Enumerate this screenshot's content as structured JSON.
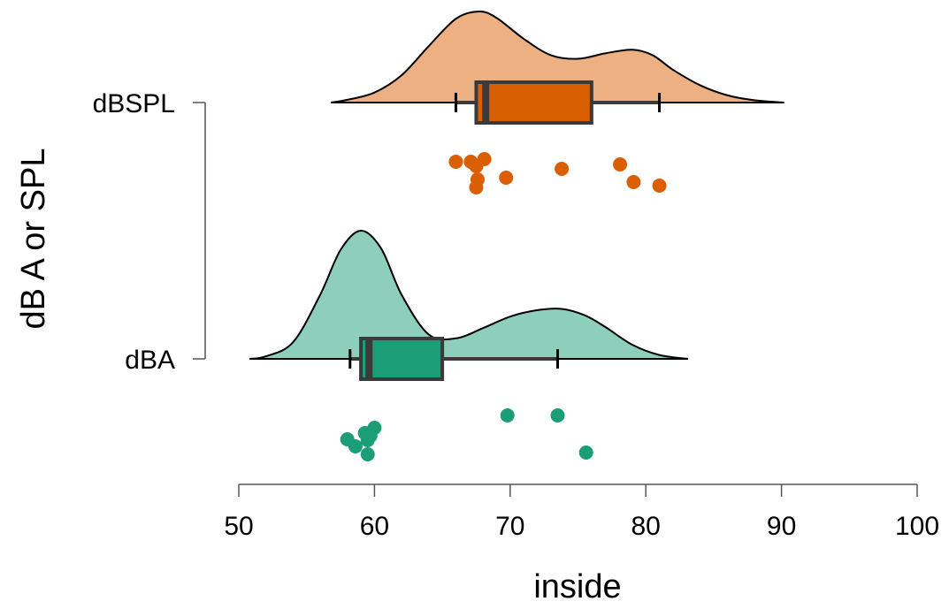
{
  "chart_data": {
    "type": "raincloud",
    "xlabel": "inside",
    "ylabel": "dB A or SPL",
    "xlim": [
      50,
      100
    ],
    "xticks": [
      50,
      60,
      70,
      80,
      90,
      100
    ],
    "xtick_labels": [
      "50",
      "60",
      "70",
      "80",
      "90",
      "100"
    ],
    "grid": false,
    "legend": "none",
    "groups": [
      {
        "name": "dBSPL",
        "fill_color": "#D95F02",
        "density_color": "#EDB083",
        "box": {
          "whisker_low": 66,
          "q1": 67.5,
          "median": 68.2,
          "q3": 76,
          "whisker_high": 81
        },
        "density": {
          "x": [
            56.8,
            58,
            60,
            62,
            64,
            66,
            67.7,
            69,
            71,
            73,
            75,
            77,
            79,
            80.5,
            82,
            84,
            86,
            88,
            90.2
          ],
          "d": [
            0.0,
            0.03,
            0.11,
            0.3,
            0.62,
            0.92,
            1.0,
            0.93,
            0.7,
            0.52,
            0.48,
            0.54,
            0.58,
            0.52,
            0.36,
            0.19,
            0.08,
            0.025,
            0.0
          ]
        },
        "points": [
          {
            "x": 66,
            "y": 67
          },
          {
            "x": 67.1,
            "y": 67
          },
          {
            "x": 67.5,
            "y": 72
          },
          {
            "x": 68.1,
            "y": 64
          },
          {
            "x": 67.6,
            "y": 87
          },
          {
            "x": 67.5,
            "y": 96
          },
          {
            "x": 69.7,
            "y": 85
          },
          {
            "x": 73.8,
            "y": 75
          },
          {
            "x": 78.1,
            "y": 70
          },
          {
            "x": 79.1,
            "y": 90
          },
          {
            "x": 81.0,
            "y": 94
          }
        ]
      },
      {
        "name": "dBA",
        "fill_color": "#1B9E77",
        "density_color": "#8DCFBB",
        "box": {
          "whisker_low": 58.2,
          "q1": 59,
          "median": 59.6,
          "q3": 65,
          "whisker_high": 73.5
        },
        "density": {
          "x": [
            50.8,
            52,
            54,
            56,
            57.5,
            59,
            60.5,
            62,
            64,
            66,
            68,
            70,
            72,
            73.8,
            75.5,
            77,
            79,
            81,
            83.1
          ],
          "d": [
            0.0,
            0.02,
            0.13,
            0.5,
            0.85,
            1.0,
            0.86,
            0.5,
            0.19,
            0.16,
            0.24,
            0.33,
            0.38,
            0.39,
            0.34,
            0.25,
            0.11,
            0.03,
            0.0
          ]
        },
        "points": [
          {
            "x": 58.0,
            "y": 91
          },
          {
            "x": 58.6,
            "y": 99
          },
          {
            "x": 59.3,
            "y": 84
          },
          {
            "x": 59.5,
            "y": 92
          },
          {
            "x": 59.7,
            "y": 87
          },
          {
            "x": 60.0,
            "y": 78
          },
          {
            "x": 59.5,
            "y": 108
          },
          {
            "x": 69.8,
            "y": 64
          },
          {
            "x": 73.5,
            "y": 64
          },
          {
            "x": 75.6,
            "y": 106
          }
        ]
      }
    ]
  }
}
